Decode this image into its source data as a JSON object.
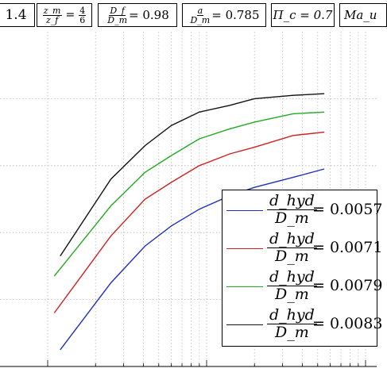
{
  "header": {
    "box1": "1.4",
    "zm_num": "z_m",
    "zm_den": "z_f",
    "zm_val_num": "4",
    "zm_val_den": "6",
    "df_num": "D_f",
    "df_den": "D_m",
    "df_val": "= 0.98",
    "a_num": "a",
    "a_den": "D_m",
    "a_val": "= 0.785",
    "pi_label": "Π_c = 0.7",
    "ma_label": "Ma_u"
  },
  "chart_data": {
    "type": "line",
    "title": "",
    "xlabel": "",
    "ylabel": "",
    "x_scale": "log",
    "grid": true,
    "legend_position": "bottom-right",
    "series": [
      {
        "name": "d_hyd / D_m = 0.0057",
        "color": "#1f2fbf",
        "x": [
          1.2,
          2.5,
          4.1,
          6.0,
          9.0,
          14,
          20,
          35,
          55
        ],
        "y": [
          0.05,
          0.25,
          0.36,
          0.42,
          0.47,
          0.51,
          0.535,
          0.565,
          0.59
        ]
      },
      {
        "name": "d_hyd / D_m = 0.0071",
        "color": "#d02020",
        "x": [
          1.1,
          2.5,
          4.1,
          6.0,
          9.0,
          14,
          20,
          35,
          55
        ],
        "y": [
          0.16,
          0.39,
          0.5,
          0.55,
          0.6,
          0.635,
          0.655,
          0.69,
          0.7
        ]
      },
      {
        "name": "d_hyd / D_m = 0.0079",
        "color": "#22aa22",
        "x": [
          1.1,
          2.5,
          4.1,
          6.0,
          9.0,
          14,
          20,
          35,
          55
        ],
        "y": [
          0.27,
          0.48,
          0.58,
          0.63,
          0.68,
          0.71,
          0.73,
          0.755,
          0.76
        ]
      },
      {
        "name": "d_hyd / D_m = 0.0083",
        "color": "#111111",
        "x": [
          1.2,
          2.5,
          4.1,
          6.0,
          9.0,
          14,
          20,
          35,
          55
        ],
        "y": [
          0.33,
          0.56,
          0.66,
          0.72,
          0.76,
          0.78,
          0.8,
          0.81,
          0.815
        ]
      }
    ]
  },
  "legend": {
    "num": "d_hyd",
    "den": "D_m",
    "items": [
      {
        "value": "= 0.0057",
        "color": "#1f2fbf"
      },
      {
        "value": "= 0.0071",
        "color": "#d02020"
      },
      {
        "value": "= 0.0079",
        "color": "#22aa22"
      },
      {
        "value": "= 0.0083",
        "color": "#111111"
      }
    ]
  }
}
